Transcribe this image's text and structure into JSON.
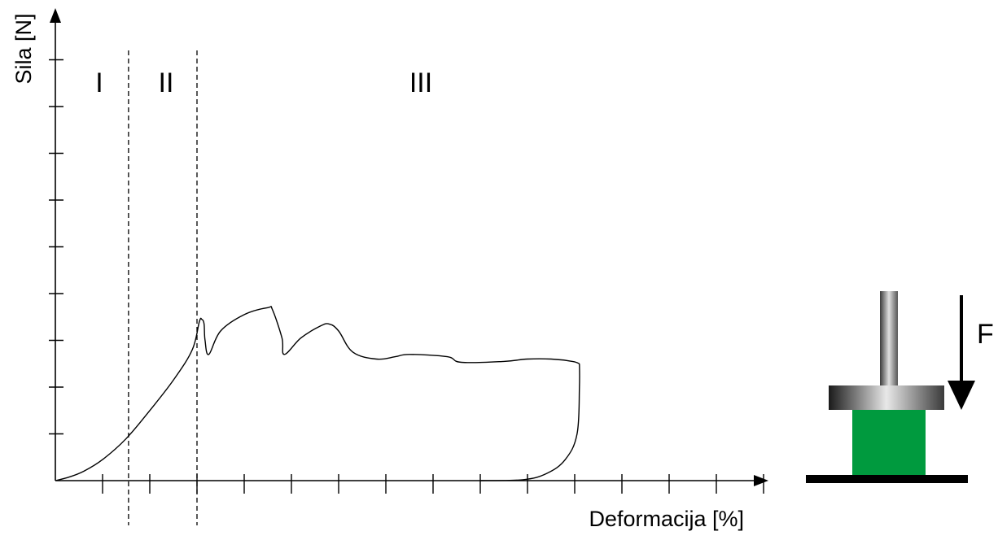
{
  "chart_data": {
    "type": "line",
    "title": "",
    "xlabel": "Deformacija [%]",
    "ylabel": "Sila [N]",
    "axis_ticks": {
      "x_count": 15,
      "y_count": 9
    },
    "regions": [
      {
        "label": "I"
      },
      {
        "label": "II"
      },
      {
        "label": "III"
      }
    ],
    "region_boundaries_x": [
      1.55,
      3.0
    ],
    "series": [
      {
        "loading_curve": [
          [
            0.0,
            0.0
          ],
          [
            0.3,
            0.08
          ],
          [
            0.6,
            0.2
          ],
          [
            1.0,
            0.45
          ],
          [
            1.5,
            0.9
          ],
          [
            2.0,
            1.5
          ],
          [
            2.5,
            2.15
          ],
          [
            2.9,
            2.8
          ],
          [
            3.05,
            3.4
          ],
          [
            3.1,
            3.45
          ],
          [
            3.15,
            3.35
          ],
          [
            3.17,
            3.0
          ],
          [
            3.25,
            2.7
          ],
          [
            3.5,
            3.2
          ],
          [
            4.0,
            3.55
          ],
          [
            4.5,
            3.7
          ],
          [
            4.6,
            3.65
          ],
          [
            4.8,
            3.05
          ],
          [
            4.85,
            2.7
          ],
          [
            5.2,
            3.05
          ],
          [
            5.6,
            3.3
          ],
          [
            5.8,
            3.35
          ],
          [
            6.0,
            3.2
          ],
          [
            6.3,
            2.75
          ],
          [
            6.8,
            2.6
          ],
          [
            7.2,
            2.65
          ],
          [
            7.5,
            2.7
          ],
          [
            8.3,
            2.65
          ],
          [
            8.6,
            2.53
          ],
          [
            9.5,
            2.55
          ],
          [
            10.0,
            2.6
          ],
          [
            10.5,
            2.6
          ],
          [
            10.95,
            2.55
          ],
          [
            11.1,
            2.5
          ]
        ],
        "unloading_curve": [
          [
            11.1,
            2.5
          ],
          [
            11.1,
            2.0
          ],
          [
            11.05,
            1.0
          ],
          [
            10.8,
            0.45
          ],
          [
            10.4,
            0.15
          ],
          [
            9.9,
            0.02
          ],
          [
            9.0,
            0.0
          ]
        ]
      }
    ]
  },
  "specimen_diagram": {
    "force_label": "F",
    "specimen_color": "#009a3e",
    "platen_colors": [
      "#1a1a1a",
      "#e8e8e8",
      "#3a3a3a"
    ],
    "rod_colors": [
      "#3a3a3a",
      "#e0e0e0",
      "#555555"
    ],
    "base_color": "#000000"
  }
}
